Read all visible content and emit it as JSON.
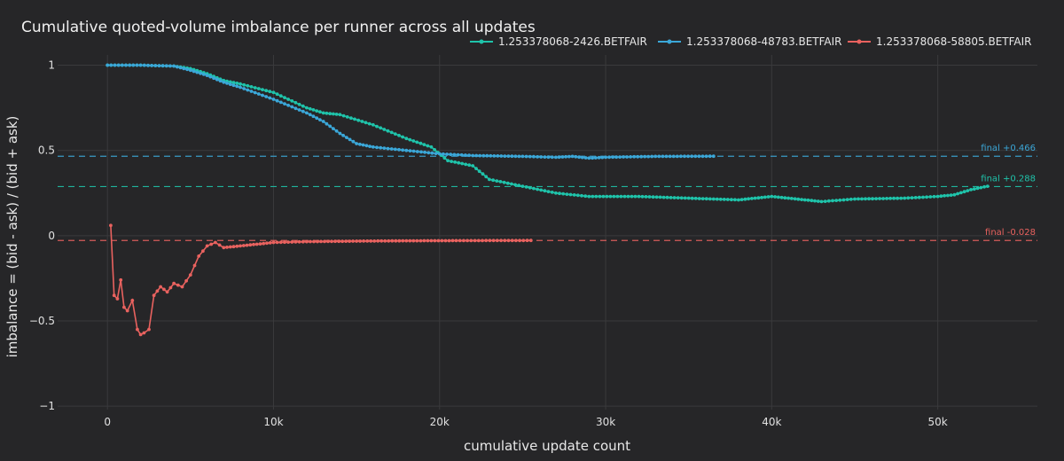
{
  "chart_data": {
    "type": "line",
    "title": "Cumulative quoted-volume imbalance per runner across all updates",
    "xlabel": "cumulative update count",
    "ylabel": "imbalance = (bid - ask) / (bid + ask)",
    "xlim": [
      -3000,
      56000
    ],
    "ylim": [
      -1.02,
      1.06
    ],
    "x_ticks": [
      0,
      10000,
      20000,
      30000,
      40000,
      50000
    ],
    "x_tick_labels": [
      "0",
      "10k",
      "20k",
      "30k",
      "40k",
      "50k"
    ],
    "y_ticks": [
      -1,
      -0.5,
      0,
      0.5,
      1
    ],
    "y_tick_labels": [
      "−1",
      "−0.5",
      "0",
      "0.5",
      "1"
    ],
    "grid": true,
    "legend_position": "top-right",
    "series": [
      {
        "name": "1.253378068-2426.BETFAIR",
        "color": "#1fc3aa",
        "final_label": "final +0.288",
        "final_value": 0.288,
        "x": [
          0,
          2000,
          4000,
          5000,
          6000,
          7000,
          8000,
          10000,
          12000,
          13000,
          14000,
          16000,
          18000,
          19500,
          20500,
          22000,
          23000,
          25000,
          27000,
          29000,
          32000,
          35000,
          38000,
          39000,
          40000,
          41000,
          42000,
          43000,
          45000,
          48000,
          50000,
          51000,
          52000,
          53000
        ],
        "y": [
          1.0,
          1.0,
          0.995,
          0.98,
          0.95,
          0.91,
          0.89,
          0.84,
          0.75,
          0.72,
          0.71,
          0.65,
          0.57,
          0.52,
          0.44,
          0.41,
          0.33,
          0.29,
          0.25,
          0.23,
          0.23,
          0.22,
          0.21,
          0.22,
          0.23,
          0.22,
          0.21,
          0.2,
          0.215,
          0.22,
          0.23,
          0.24,
          0.27,
          0.29
        ]
      },
      {
        "name": "1.253378068-48783.BETFAIR",
        "color": "#3ba7d8",
        "final_label": "final +0.466",
        "final_value": 0.466,
        "x": [
          0,
          2000,
          4000,
          5000,
          6000,
          7000,
          8000,
          10000,
          12000,
          13000,
          14000,
          15000,
          16000,
          18000,
          20000,
          22000,
          25000,
          27000,
          28000,
          29000,
          30000,
          33000,
          36500
        ],
        "y": [
          1.0,
          1.0,
          0.995,
          0.97,
          0.94,
          0.9,
          0.87,
          0.8,
          0.72,
          0.67,
          0.6,
          0.54,
          0.52,
          0.5,
          0.48,
          0.47,
          0.465,
          0.46,
          0.465,
          0.455,
          0.46,
          0.465,
          0.466
        ]
      },
      {
        "name": "1.253378068-58805.BETFAIR",
        "color": "#e9625f",
        "final_label": "final -0.028",
        "final_value": -0.028,
        "x": [
          200,
          400,
          600,
          800,
          1000,
          1200,
          1500,
          1800,
          2000,
          2200,
          2500,
          2800,
          3200,
          3600,
          4000,
          4500,
          5000,
          5500,
          6000,
          6500,
          7000,
          8000,
          9000,
          10000,
          12000,
          15000,
          18000,
          21000,
          25500
        ],
        "y": [
          0.06,
          -0.35,
          -0.37,
          -0.26,
          -0.42,
          -0.44,
          -0.38,
          -0.55,
          -0.58,
          -0.57,
          -0.55,
          -0.35,
          -0.3,
          -0.33,
          -0.28,
          -0.3,
          -0.23,
          -0.12,
          -0.06,
          -0.04,
          -0.07,
          -0.06,
          -0.05,
          -0.04,
          -0.035,
          -0.032,
          -0.03,
          -0.029,
          -0.028
        ]
      }
    ]
  }
}
